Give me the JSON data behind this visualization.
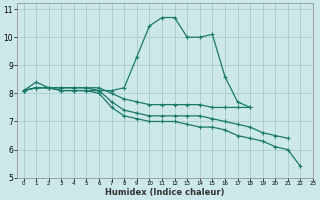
{
  "title": "",
  "xlabel": "Humidex (Indice chaleur)",
  "ylabel": "",
  "bg_color": "#cce8e8",
  "grid_color": "#aacccc",
  "line_color": "#1a7a6a",
  "xlim": [
    -0.5,
    23
  ],
  "ylim": [
    5,
    11.2
  ],
  "xticks": [
    0,
    1,
    2,
    3,
    4,
    5,
    6,
    7,
    8,
    9,
    10,
    11,
    12,
    13,
    14,
    15,
    16,
    17,
    18,
    19,
    20,
    21,
    22,
    23
  ],
  "yticks": [
    5,
    6,
    7,
    8,
    9,
    10,
    11
  ],
  "series": [
    {
      "x": [
        0,
        1,
        2,
        3,
        4,
        5,
        6,
        7,
        8,
        9,
        10,
        11,
        12,
        13,
        14,
        15,
        16,
        17,
        18
      ],
      "y": [
        8.1,
        8.4,
        8.2,
        8.1,
        8.1,
        8.1,
        8.1,
        8.1,
        8.2,
        9.3,
        10.4,
        10.7,
        10.7,
        10.0,
        10.0,
        10.1,
        8.6,
        7.7,
        7.5
      ]
    },
    {
      "x": [
        0,
        1,
        2,
        3,
        4,
        5,
        6,
        7,
        8,
        9,
        10,
        11,
        12,
        13,
        14,
        15,
        16,
        17,
        18
      ],
      "y": [
        8.1,
        8.2,
        8.2,
        8.2,
        8.2,
        8.2,
        8.2,
        8.0,
        7.8,
        7.7,
        7.6,
        7.6,
        7.6,
        7.6,
        7.6,
        7.5,
        7.5,
        7.5,
        7.5
      ]
    },
    {
      "x": [
        0,
        1,
        2,
        3,
        4,
        5,
        6,
        7,
        8,
        9,
        10,
        11,
        12,
        13,
        14,
        15,
        16,
        17,
        18,
        19,
        20,
        21
      ],
      "y": [
        8.1,
        8.2,
        8.2,
        8.2,
        8.2,
        8.2,
        8.1,
        7.7,
        7.4,
        7.3,
        7.2,
        7.2,
        7.2,
        7.2,
        7.2,
        7.1,
        7.0,
        6.9,
        6.8,
        6.6,
        6.5,
        6.4
      ]
    },
    {
      "x": [
        0,
        1,
        2,
        3,
        4,
        5,
        6,
        7,
        8,
        9,
        10,
        11,
        12,
        13,
        14,
        15,
        16,
        17,
        18,
        19,
        20,
        21,
        22
      ],
      "y": [
        8.1,
        8.2,
        8.2,
        8.1,
        8.1,
        8.1,
        8.0,
        7.5,
        7.2,
        7.1,
        7.0,
        7.0,
        7.0,
        6.9,
        6.8,
        6.8,
        6.7,
        6.5,
        6.4,
        6.3,
        6.1,
        6.0,
        5.4
      ]
    }
  ]
}
